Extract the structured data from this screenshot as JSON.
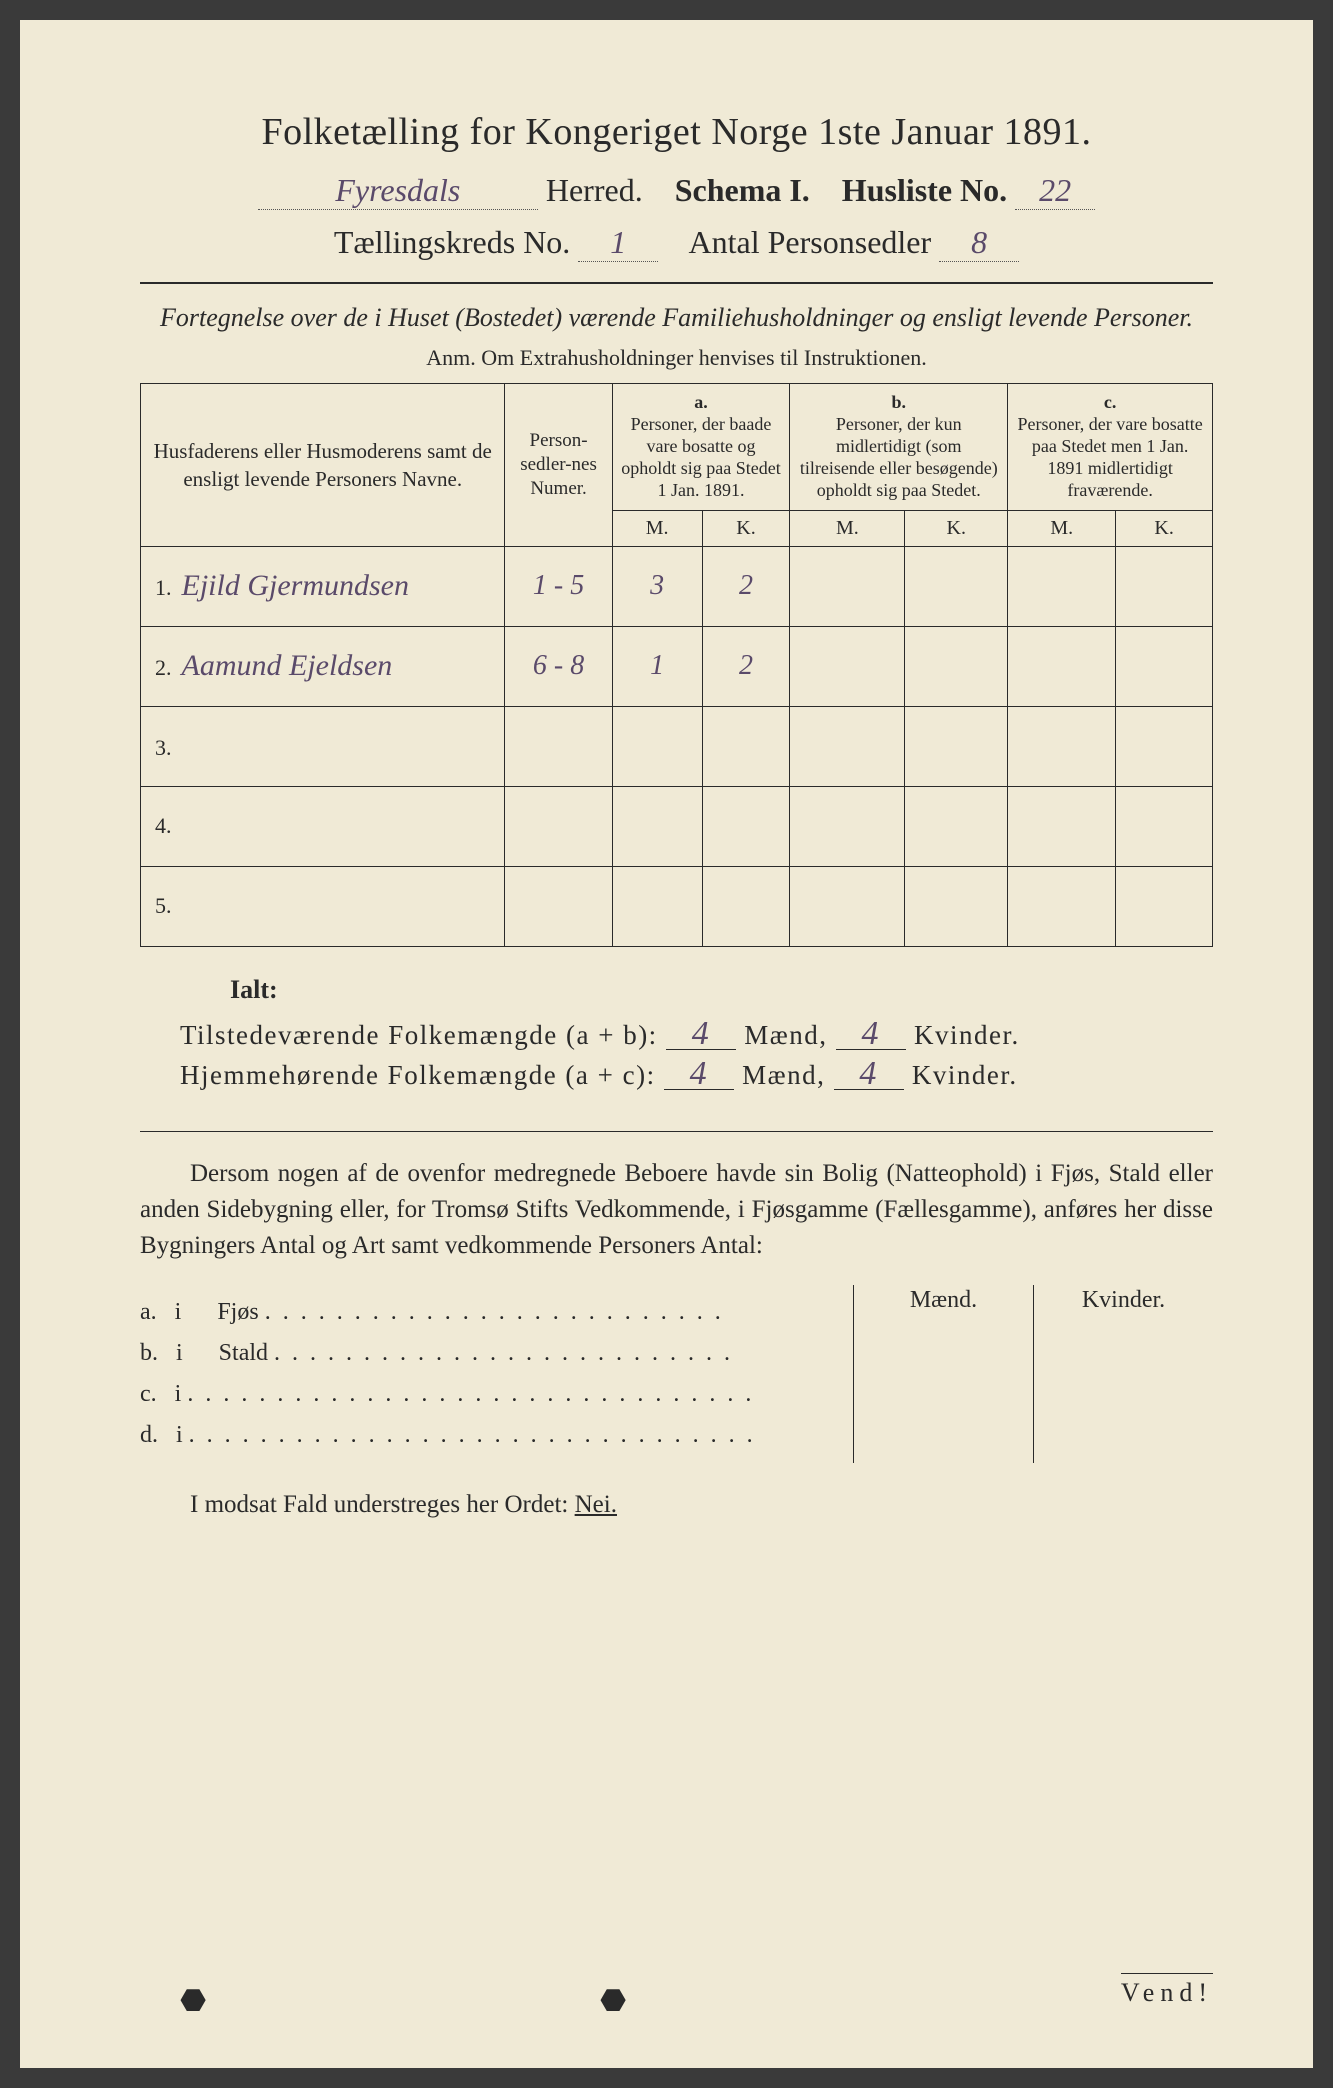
{
  "title": "Folketælling for Kongeriget Norge 1ste Januar 1891.",
  "header": {
    "herred_value": "Fyresdals",
    "herred_label": "Herred.",
    "schema_label": "Schema I.",
    "husliste_label": "Husliste No.",
    "husliste_value": "22",
    "kreds_label": "Tællingskreds No.",
    "kreds_value": "1",
    "sedler_label": "Antal Personsedler",
    "sedler_value": "8"
  },
  "subtitle": "Fortegnelse over de i Huset (Bostedet) værende Familiehusholdninger og ensligt levende Personer.",
  "anm": "Anm.  Om Extrahusholdninger henvises til Instruktionen.",
  "table": {
    "head_names": "Husfaderens eller Husmoderens samt de ensligt levende Personers Navne.",
    "head_numer": "Person-sedler-nes Numer.",
    "col_a_label": "a.",
    "col_a_text": "Personer, der baade vare bosatte og opholdt sig paa Stedet 1 Jan. 1891.",
    "col_b_label": "b.",
    "col_b_text": "Personer, der kun midlertidigt (som tilreisende eller besøgende) opholdt sig paa Stedet.",
    "col_c_label": "c.",
    "col_c_text": "Personer, der vare bosatte paa Stedet men 1 Jan. 1891 midlertidigt fraværende.",
    "mk_m": "M.",
    "mk_k": "K.",
    "rows": [
      {
        "n": "1.",
        "name": "Ejild Gjermundsen",
        "numer": "1 - 5",
        "a_m": "3",
        "a_k": "2",
        "b_m": "",
        "b_k": "",
        "c_m": "",
        "c_k": ""
      },
      {
        "n": "2.",
        "name": "Aamund Ejeldsen",
        "numer": "6 - 8",
        "a_m": "1",
        "a_k": "2",
        "b_m": "",
        "b_k": "",
        "c_m": "",
        "c_k": ""
      },
      {
        "n": "3.",
        "name": "",
        "numer": "",
        "a_m": "",
        "a_k": "",
        "b_m": "",
        "b_k": "",
        "c_m": "",
        "c_k": ""
      },
      {
        "n": "4.",
        "name": "",
        "numer": "",
        "a_m": "",
        "a_k": "",
        "b_m": "",
        "b_k": "",
        "c_m": "",
        "c_k": ""
      },
      {
        "n": "5.",
        "name": "",
        "numer": "",
        "a_m": "",
        "a_k": "",
        "b_m": "",
        "b_k": "",
        "c_m": "",
        "c_k": ""
      }
    ]
  },
  "ialt": "Ialt:",
  "sums": {
    "line1_label": "Tilstedeværende Folkemængde (a + b):",
    "line1_m": "4",
    "line1_k": "4",
    "line2_label": "Hjemmehørende Folkemængde (a + c):",
    "line2_m": "4",
    "line2_k": "4",
    "maend": "Mænd,",
    "kvinder": "Kvinder."
  },
  "para": "Dersom nogen af de ovenfor medregnede Beboere havde sin Bolig (Natteophold) i Fjøs, Stald eller anden Sidebygning eller, for Tromsø Stifts Vedkommende, i Fjøsgamme (Fællesgamme), anføres her disse Bygningers Antal og Art samt vedkommende Personers Antal:",
  "buildings": {
    "mk_m": "Mænd.",
    "mk_k": "Kvinder.",
    "rows": [
      {
        "idx": "a.",
        "i": "i",
        "label": "Fjøs"
      },
      {
        "idx": "b.",
        "i": "i",
        "label": "Stald"
      },
      {
        "idx": "c.",
        "i": "i",
        "label": ""
      },
      {
        "idx": "d.",
        "i": "i",
        "label": ""
      }
    ]
  },
  "nei_line_pre": "I modsat Fald understreges her Ordet: ",
  "nei_word": "Nei.",
  "vend": "Vend!",
  "colors": {
    "paper": "#f0ead6",
    "ink": "#2a2a2a",
    "handwriting": "#5a4a6a"
  }
}
